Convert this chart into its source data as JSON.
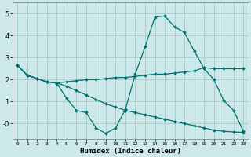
{
  "xlabel": "Humidex (Indice chaleur)",
  "bg_color": "#cce8e8",
  "grid_color": "#aacfcf",
  "line_color": "#007070",
  "xlim": [
    -0.5,
    23.5
  ],
  "ylim": [
    -0.7,
    5.5
  ],
  "series1_x": [
    0,
    1,
    2,
    3,
    4,
    5,
    6,
    7,
    8,
    9,
    10,
    11,
    12,
    13,
    14,
    15,
    16,
    17,
    18,
    19,
    20,
    21,
    22,
    23
  ],
  "series1_y": [
    2.65,
    2.2,
    2.05,
    1.9,
    1.85,
    1.15,
    0.6,
    0.5,
    -0.2,
    -0.45,
    -0.2,
    0.65,
    2.25,
    3.5,
    4.85,
    4.9,
    4.4,
    4.15,
    3.3,
    2.5,
    2.0,
    1.05,
    0.6,
    -0.35
  ],
  "series2_x": [
    0,
    1,
    2,
    3,
    4,
    5,
    6,
    7,
    8,
    9,
    10,
    11,
    12,
    13,
    14,
    15,
    16,
    17,
    18,
    19,
    20,
    21,
    22,
    23
  ],
  "series2_y": [
    2.65,
    2.2,
    2.05,
    1.9,
    1.85,
    1.9,
    1.95,
    2.0,
    2.0,
    2.05,
    2.1,
    2.1,
    2.15,
    2.2,
    2.25,
    2.25,
    2.3,
    2.35,
    2.4,
    2.55,
    2.5,
    2.5,
    2.5,
    2.5
  ],
  "series3_x": [
    0,
    1,
    2,
    3,
    4,
    5,
    6,
    7,
    8,
    9,
    10,
    11,
    12,
    13,
    14,
    15,
    16,
    17,
    18,
    19,
    20,
    21,
    22,
    23
  ],
  "series3_y": [
    2.65,
    2.2,
    2.05,
    1.9,
    1.85,
    1.7,
    1.5,
    1.3,
    1.1,
    0.9,
    0.75,
    0.6,
    0.5,
    0.4,
    0.3,
    0.2,
    0.1,
    0.0,
    -0.1,
    -0.2,
    -0.3,
    -0.35,
    -0.38,
    -0.4
  ],
  "yticks": [
    0,
    1,
    2,
    3,
    4,
    5
  ],
  "ytick_labels": [
    "-0",
    "1",
    "2",
    "3",
    "4",
    "5"
  ],
  "xticks": [
    0,
    1,
    2,
    3,
    4,
    5,
    6,
    7,
    8,
    9,
    10,
    11,
    12,
    13,
    14,
    15,
    16,
    17,
    18,
    19,
    20,
    21,
    22,
    23
  ]
}
